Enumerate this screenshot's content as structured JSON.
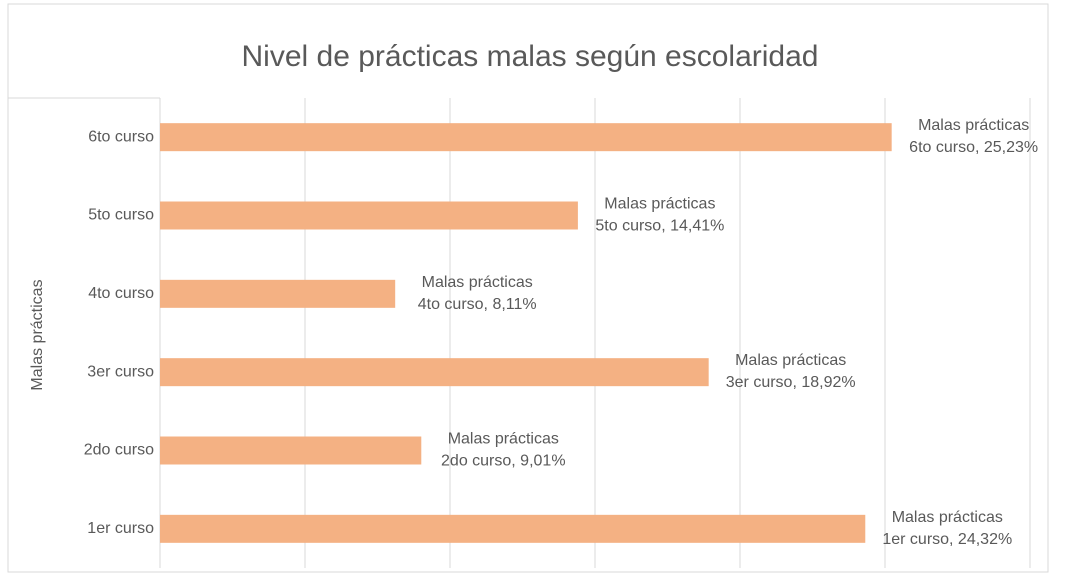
{
  "chart_data": {
    "type": "barh",
    "title": "Nivel de prácticas malas según escolaridad",
    "ylabel": "Malas prácticas",
    "categories": [
      "1er curso",
      "2do curso",
      "3er curso",
      "4to curso",
      "5to curso",
      "6to curso"
    ],
    "series": [
      {
        "name": "Malas prácticas",
        "color": "#f4b183",
        "values": [
          24.32,
          9.01,
          18.92,
          8.11,
          14.41,
          25.23
        ],
        "value_labels": [
          "1er curso, 24,32%",
          "2do curso, 9,01%",
          "3er curso, 18,92%",
          "4to curso, 8,11%",
          "5to curso, 14,41%",
          "6to curso, 25,23%"
        ]
      }
    ],
    "xlim": [
      0,
      30
    ],
    "xticks": [
      0,
      5,
      10,
      15,
      20,
      25,
      30
    ],
    "grid": true
  }
}
